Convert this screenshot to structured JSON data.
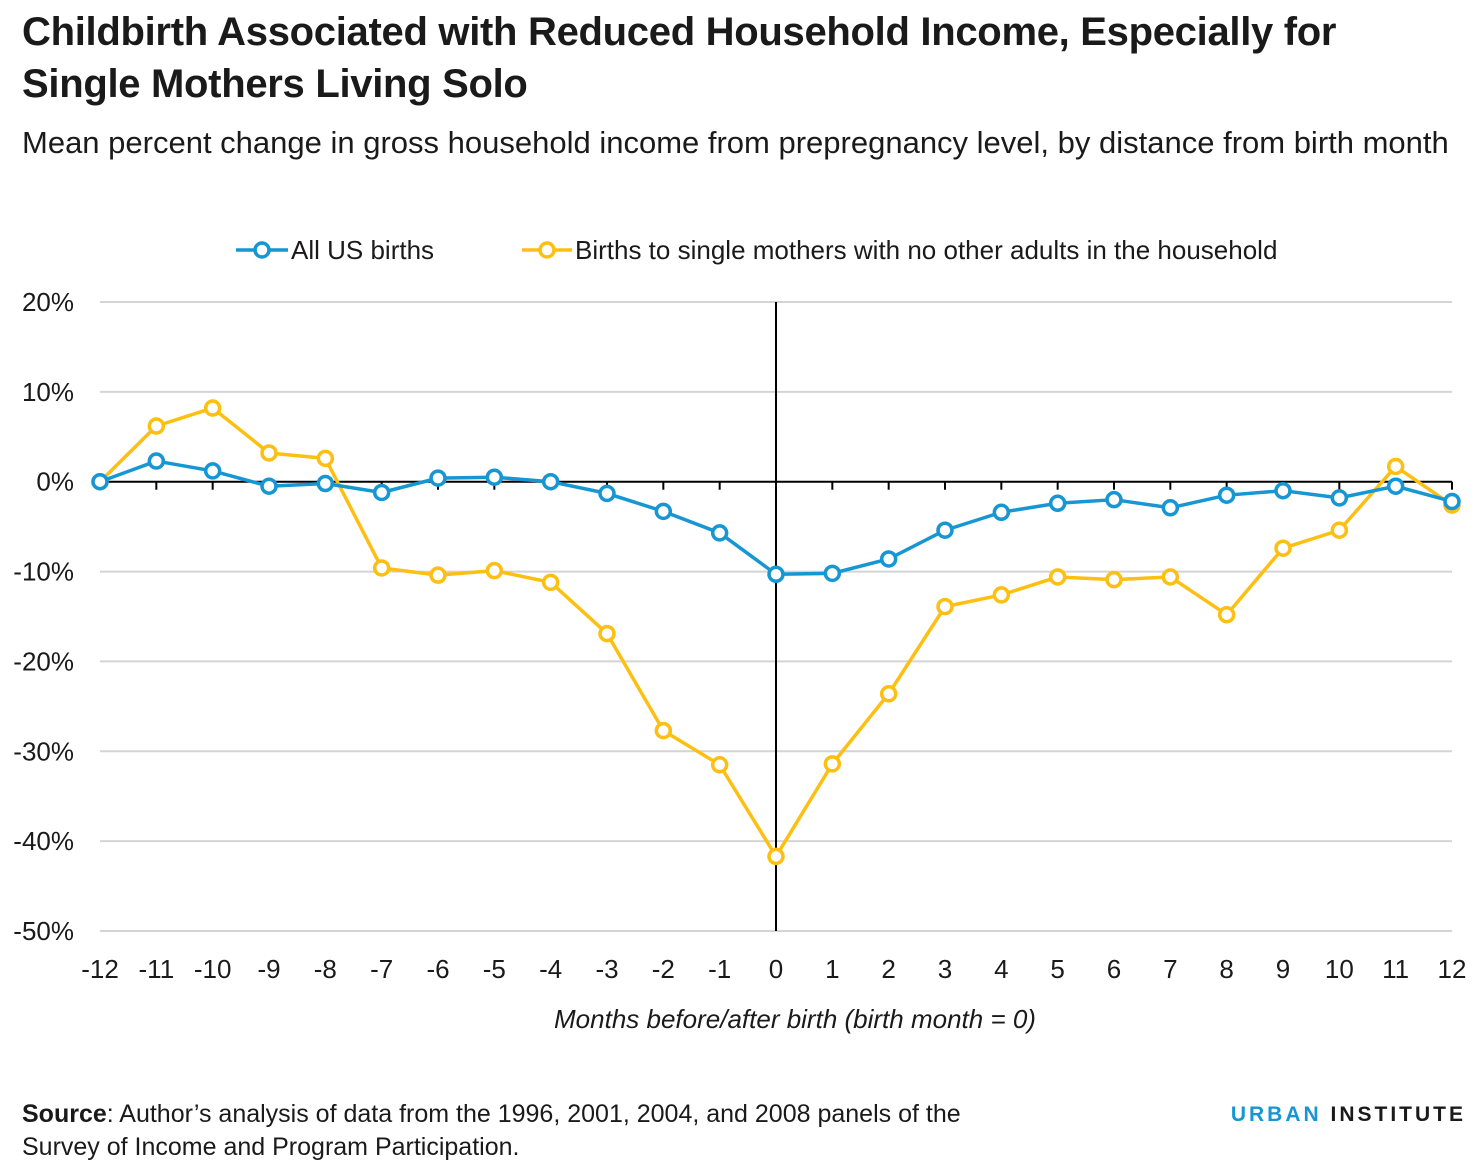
{
  "title": "Childbirth Associated with Reduced Household Income, Especially for Single Mothers Living Solo",
  "subtitle": "Mean percent change in gross household income from prepregnancy level, by distance from birth month",
  "chart_data": {
    "type": "line",
    "x": [
      -12,
      -11,
      -10,
      -9,
      -8,
      -7,
      -6,
      -5,
      -4,
      -3,
      -2,
      -1,
      0,
      1,
      2,
      3,
      4,
      5,
      6,
      7,
      8,
      9,
      10,
      11,
      12
    ],
    "x_tick_labels": [
      "-12",
      "-11",
      "-10",
      "-9",
      "-8",
      "-7",
      "-6",
      "-5",
      "-4",
      "-3",
      "-2",
      "-1",
      "0",
      "1",
      "2",
      "3",
      "4",
      "5",
      "6",
      "7",
      "8",
      "9",
      "10",
      "11",
      "12"
    ],
    "series": [
      {
        "name": "All US births",
        "color": "#1696d2",
        "values": [
          0,
          2.3,
          1.2,
          -0.5,
          -0.2,
          -1.2,
          0.4,
          0.5,
          0,
          -1.3,
          -3.3,
          -5.7,
          -10.3,
          -10.2,
          -8.6,
          -5.4,
          -3.4,
          -2.4,
          -2,
          -2.9,
          -1.5,
          -1,
          -1.8,
          -0.5,
          -2.2
        ]
      },
      {
        "name": "Births to single mothers with no other adults in the household",
        "color": "#fdbf11",
        "values": [
          0,
          6.2,
          8.2,
          3.2,
          2.6,
          -9.6,
          -10.4,
          -9.9,
          -11.2,
          -16.9,
          -27.7,
          -31.5,
          -41.7,
          -31.4,
          -23.6,
          -13.9,
          -12.6,
          -10.6,
          -10.9,
          -10.6,
          -14.8,
          -7.4,
          -5.4,
          1.7,
          -2.6
        ]
      }
    ],
    "y_ticks": [
      20,
      10,
      0,
      -10,
      -20,
      -30,
      -40,
      -50
    ],
    "y_tick_labels": [
      "20%",
      "10%",
      "0%",
      "-10%",
      "-20%",
      "-30%",
      "-40%",
      "-50%"
    ],
    "ylim": [
      -50,
      20
    ],
    "xlim": [
      -12,
      12
    ],
    "xlabel": "Months before/after birth (birth month = 0)",
    "ylabel": "",
    "legend_position": "top"
  },
  "footer": {
    "source_label": "Source",
    "source_text": ": Author’s analysis of data from the 1996, 2001, 2004, and 2008 panels of the Survey of Income and Program Participation.",
    "brand_part1": "URBAN",
    "brand_part2": "INSTITUTE"
  }
}
